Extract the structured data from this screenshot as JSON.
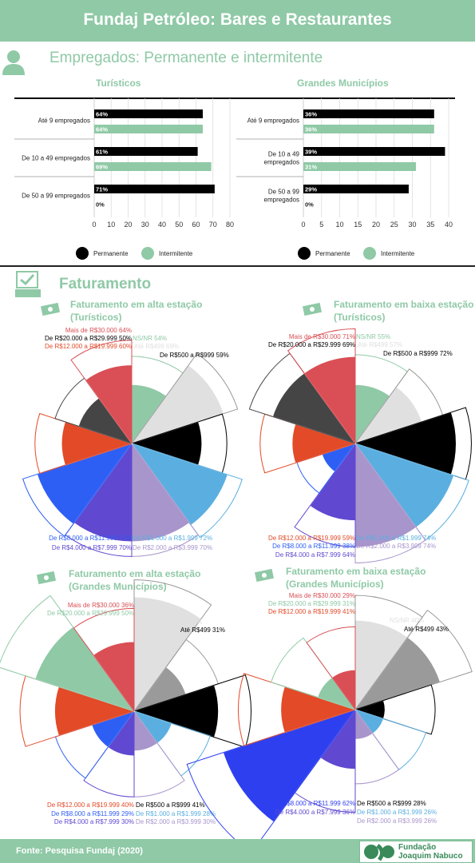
{
  "header": {
    "title": "Fundaj Petróleo: Bares e Restaurantes"
  },
  "section1": {
    "title": "Empregados: Permanente e intermitente"
  },
  "section2": {
    "title": "Faturamento"
  },
  "footer": {
    "source": "Fonte: Pesquisa Fundaj (2020)",
    "logo_line1": "Fundação",
    "logo_line2": "Joaquim Nabuco"
  },
  "colors": {
    "green": "#8fc9a6",
    "black": "#000000"
  },
  "chart_data": [
    {
      "type": "bar",
      "title": "Turísticos",
      "categories": [
        "Até 9 empregados",
        "De 10 a 49 empregados",
        "De 50 a 99 empregados"
      ],
      "series": [
        {
          "name": "Permanente",
          "values": [
            64,
            61,
            71
          ],
          "color": "#000000",
          "labels": [
            "64%",
            "61%",
            "71%"
          ]
        },
        {
          "name": "Intermitente",
          "values": [
            64,
            69,
            0
          ],
          "color": "#8fc9a6",
          "labels": [
            "64%",
            "69%",
            "0%"
          ]
        }
      ],
      "xticks": [
        "0",
        "10",
        "20",
        "30",
        "40",
        "50",
        "60",
        "70",
        "80"
      ],
      "xlim": [
        0,
        80
      ]
    },
    {
      "type": "bar",
      "title": "Grandes Municípios",
      "categories": [
        "Até 9 empregados",
        "De 10 a 49 empregados",
        "De 50 a 99 empregados"
      ],
      "series": [
        {
          "name": "Permanente",
          "values": [
            36,
            39,
            29
          ],
          "color": "#000000",
          "labels": [
            "36%",
            "39%",
            "29%"
          ]
        },
        {
          "name": "Intermitente",
          "values": [
            36,
            31,
            0
          ],
          "color": "#8fc9a6",
          "labels": [
            "36%",
            "31%",
            "0%"
          ]
        }
      ],
      "xticks": [
        "0",
        "5",
        "10",
        "15",
        "20",
        "25",
        "30",
        "35",
        "40"
      ],
      "xlim": [
        0,
        40
      ]
    },
    {
      "type": "pie",
      "title": "Faturamento em alta estação",
      "subtitle": "(Turísticos)",
      "slices": [
        {
          "label": "NS/NR",
          "inner": 0.42,
          "outer": 0.54,
          "value": 54,
          "color": "#8fc9a6"
        },
        {
          "label": "Até R$499",
          "inner": 0.69,
          "outer": 0.69,
          "value": 69,
          "color": "#e0e0e0"
        },
        {
          "label": "De R$500 a R$999",
          "inner": 0.5,
          "outer": 0.59,
          "value": 59,
          "color": "#000000"
        },
        {
          "label": "De R$1.000 a R$1.999",
          "inner": 0.72,
          "outer": 0.72,
          "value": 72,
          "color": "#5aafe0"
        },
        {
          "label": "De R$2.000 a R$3.999",
          "inner": 0.7,
          "outer": 0.7,
          "value": 70,
          "color": "#a895cc"
        },
        {
          "label": "De R$4.000 a R$7.999",
          "inner": 0.7,
          "outer": 0.7,
          "value": 70,
          "color": "#6048d0"
        },
        {
          "label": "De R$8.000 a R$11.999",
          "inner": 0.71,
          "outer": 0.71,
          "value": 71,
          "color": "#2e5ff5"
        },
        {
          "label": "De R$12.000 a R$19.999",
          "inner": 0.5,
          "outer": 0.6,
          "value": 60,
          "color": "#e24a28"
        },
        {
          "label": "De R$20.000 a R$29.999",
          "inner": 0.4,
          "outer": 0.5,
          "value": 50,
          "color": "#454545"
        },
        {
          "label": "Mais de R$30.000",
          "inner": 0.56,
          "outer": 0.64,
          "value": 64,
          "color": "#d94f55"
        }
      ],
      "labels": [
        {
          "text": "Mais de R$30.000 64%",
          "color": "#d94f55"
        },
        {
          "text": "NS/NR 54%",
          "color": "#8fc9a6"
        },
        {
          "text": "De R$20.000 a R$29.999 50%",
          "color": "#000000"
        },
        {
          "text": "Até R$499 69%",
          "color": "#e0e0e0"
        },
        {
          "text": "De R$12.000 a R$19.999 60%",
          "color": "#e24a28"
        },
        {
          "text": "De R$500 a R$999 59%",
          "color": "#000000"
        },
        {
          "text": "De R$8.000 a R$11.999 71%",
          "color": "#2e5ff5"
        },
        {
          "text": "De R$1.000 a R$1.999 72%",
          "color": "#5aafe0"
        },
        {
          "text": "De R$4.000 a R$7.999 70%",
          "color": "#6048d0"
        },
        {
          "text": "De R$2.000 a R$3.999 70%",
          "color": "#a895cc"
        }
      ]
    },
    {
      "type": "pie",
      "title": "Faturamento em baixa estação",
      "subtitle": "(Turísticos)",
      "slices": [
        {
          "label": "NS/NR",
          "inner": 0.42,
          "outer": 0.55,
          "value": 55,
          "color": "#8fc9a6"
        },
        {
          "label": "Até R$499",
          "inner": 0.5,
          "outer": 0.57,
          "value": 57,
          "color": "#e0e0e0"
        },
        {
          "label": "De R$500 a R$999",
          "inner": 0.72,
          "outer": 0.72,
          "value": 72,
          "color": "#000000"
        },
        {
          "label": "De R$1.000 a R$1.999",
          "inner": 0.74,
          "outer": 0.74,
          "value": 74,
          "color": "#5aafe0"
        },
        {
          "label": "De R$2.000 a R$3.999",
          "inner": 0.74,
          "outer": 0.74,
          "value": 74,
          "color": "#a895cc"
        },
        {
          "label": "De R$4.000 a R$7.999",
          "inner": 0.55,
          "outer": 0.64,
          "value": 64,
          "color": "#6048d0"
        },
        {
          "label": "De R$8.000 a R$11.999",
          "inner": 0.25,
          "outer": 0.38,
          "value": 38,
          "color": "#2e5ff5"
        },
        {
          "label": "De R$12.000 a R$19.999",
          "inner": 0.45,
          "outer": 0.59,
          "value": 59,
          "color": "#e24a28"
        },
        {
          "label": "De R$20.000 a R$29.999",
          "inner": 0.62,
          "outer": 0.69,
          "value": 69,
          "color": "#454545"
        },
        {
          "label": "Mais de R$30.000",
          "inner": 0.62,
          "outer": 0.71,
          "value": 71,
          "color": "#d94f55"
        }
      ],
      "labels": [
        {
          "text": "Mais de R$30.000 71%",
          "color": "#d94f55"
        },
        {
          "text": "NS/NR 55%",
          "color": "#8fc9a6"
        },
        {
          "text": "De R$20.000 a R$29.999 69%",
          "color": "#000000"
        },
        {
          "text": "Até R$499 57%",
          "color": "#e0e0e0"
        },
        {
          "text": "De R$500 a R$999 72%",
          "color": "#000000"
        },
        {
          "text": "De R$12.000 a R$19.999 59%",
          "color": "#e24a28"
        },
        {
          "text": "De R$1.000 a R$1.999 74%",
          "color": "#5aafe0"
        },
        {
          "text": "De R$8.000 a R$11.999 38%",
          "color": "#2e5ff5"
        },
        {
          "text": "De R$2.000 a R$3.999 74%",
          "color": "#a895cc"
        },
        {
          "text": "De R$4.000 a R$7.999 64%",
          "color": "#6048d0"
        }
      ]
    },
    {
      "type": "pie",
      "title": "Faturamento em alta estação",
      "subtitle": "(Grandes Municípios)",
      "slices": [
        {
          "label": "NS/NR",
          "inner": 0.46,
          "outer": 0.46,
          "value": 46,
          "color": "#e0e0e0"
        },
        {
          "label": "Até R$499",
          "inner": 0.22,
          "outer": 0.31,
          "value": 31,
          "color": "#9a9a9a"
        },
        {
          "label": "De R$500 a R$999",
          "inner": 0.34,
          "outer": 0.41,
          "value": 41,
          "color": "#000000"
        },
        {
          "label": "De R$1.000 a R$1.999",
          "inner": 0.16,
          "outer": 0.28,
          "value": 28,
          "color": "#5aafe0"
        },
        {
          "label": "De R$2.000 a R$3.999",
          "inner": 0.16,
          "outer": 0.3,
          "value": 30,
          "color": "#a895cc"
        },
        {
          "label": "De R$4.000 a R$7.999",
          "inner": 0.18,
          "outer": 0.3,
          "value": 30,
          "color": "#6048d0"
        },
        {
          "label": "De R$8.000 a R$11.999",
          "inner": 0.18,
          "outer": 0.29,
          "value": 29,
          "color": "#2e5ff5"
        },
        {
          "label": "De R$12.000 a R$19.999",
          "inner": 0.32,
          "outer": 0.4,
          "value": 40,
          "color": "#e24a28"
        },
        {
          "label": "De R$20.000 a R$29.999",
          "inner": 0.42,
          "outer": 0.5,
          "value": 50,
          "color": "#8fc9a6"
        },
        {
          "label": "Mais de R$30.000",
          "inner": 0.28,
          "outer": 0.36,
          "value": 36,
          "color": "#d94f55"
        }
      ],
      "labels": [
        {
          "text": "Mais de R$30.000 36%",
          "color": "#d94f55"
        },
        {
          "text": "De R$20.000 a R$29.999 50%",
          "color": "#8fc9a6"
        },
        {
          "text": "NS/NR 46%",
          "color": "#e0e0e0"
        },
        {
          "text": "Até R$499 31%",
          "color": "#000000"
        },
        {
          "text": "De R$12.000 a R$19.999 40%",
          "color": "#e24a28"
        },
        {
          "text": "De R$500 a R$999 41%",
          "color": "#000000"
        },
        {
          "text": "De R$8.000 a R$11.999 29%",
          "color": "#2e5ff5"
        },
        {
          "text": "De R$1.000 a R$1.999 28%",
          "color": "#5aafe0"
        },
        {
          "text": "De R$4.000 a R$7.999 30%",
          "color": "#6048d0"
        },
        {
          "text": "De R$2.000 a R$3.999 30%",
          "color": "#a895cc"
        }
      ]
    },
    {
      "type": "pie",
      "title": "Faturamento em baixa estação",
      "subtitle": "(Grandes Municípios)",
      "slices": [
        {
          "label": "NS/NR",
          "inner": 0.36,
          "outer": 0.4,
          "value": 40,
          "color": "#e0e0e0"
        },
        {
          "label": "Até R$499",
          "inner": 0.36,
          "outer": 0.43,
          "value": 43,
          "color": "#9a9a9a"
        },
        {
          "label": "De R$500 a R$999",
          "inner": 0.12,
          "outer": 0.28,
          "value": 28,
          "color": "#000000"
        },
        {
          "label": "De R$1.000 a R$1.999",
          "inner": 0.12,
          "outer": 0.26,
          "value": 26,
          "color": "#5aafe0"
        },
        {
          "label": "De R$2.000 a R$3.999",
          "inner": 0.12,
          "outer": 0.26,
          "value": 26,
          "color": "#a895cc"
        },
        {
          "label": "De R$4.000 a R$7.999",
          "inner": 0.24,
          "outer": 0.36,
          "value": 36,
          "color": "#6048d0"
        },
        {
          "label": "De R$8.000 a R$11.999",
          "inner": 0.56,
          "outer": 0.62,
          "value": 62,
          "color": "#2e3ff0"
        },
        {
          "label": "De R$12.000 a R$19.999",
          "inner": 0.3,
          "outer": 0.41,
          "value": 41,
          "color": "#e24a28"
        },
        {
          "label": "De R$20.000 a R$29.999",
          "inner": 0.16,
          "outer": 0.31,
          "value": 31,
          "color": "#8fc9a6"
        },
        {
          "label": "Mais de R$30.000",
          "inner": 0.16,
          "outer": 0.29,
          "value": 29,
          "color": "#d94f55"
        }
      ],
      "labels": [
        {
          "text": "Mais de R$30.000 29%",
          "color": "#d94f55"
        },
        {
          "text": "De R$20.000 a R$29.999 31%",
          "color": "#8fc9a6"
        },
        {
          "text": "De R$12.000 a R$19.999 41%",
          "color": "#e24a28"
        },
        {
          "text": "NS/NR 40%",
          "color": "#e0e0e0"
        },
        {
          "text": "Até R$499 43%",
          "color": "#000000"
        },
        {
          "text": "De R$8.000 a R$11.999 62%",
          "color": "#2e3ff0"
        },
        {
          "text": "De R$500 a R$999 28%",
          "color": "#000000"
        },
        {
          "text": "De R$4.000 a R$7.999 36%",
          "color": "#6048d0"
        },
        {
          "text": "De R$1.000 a R$1.999 26%",
          "color": "#5aafe0"
        },
        {
          "text": "De R$2.000 a R$3.999 26%",
          "color": "#a895cc"
        }
      ]
    }
  ]
}
